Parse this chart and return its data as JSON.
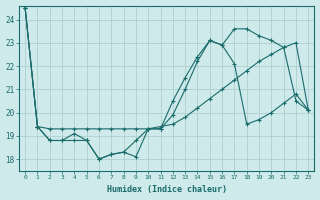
{
  "xlabel": "Humidex (Indice chaleur)",
  "bg_color": "#ceeaea",
  "line_color": "#1a6b6b",
  "grid_color": "#b8d8d8",
  "xlim": [
    -0.5,
    23.5
  ],
  "ylim": [
    17.5,
    24.6
  ],
  "yticks": [
    18,
    19,
    20,
    21,
    22,
    23,
    24
  ],
  "xticks": [
    0,
    1,
    2,
    3,
    4,
    5,
    6,
    7,
    8,
    9,
    10,
    11,
    12,
    13,
    14,
    15,
    16,
    17,
    18,
    19,
    20,
    21,
    22,
    23
  ],
  "line1_x": [
    0,
    1,
    2,
    3,
    4,
    5,
    6,
    7,
    8,
    9,
    10,
    11,
    12,
    13,
    14,
    15,
    16,
    17,
    18,
    19,
    20,
    21,
    22,
    23
  ],
  "line1_y": [
    24.5,
    19.4,
    19.3,
    19.3,
    19.3,
    19.3,
    19.3,
    19.3,
    19.3,
    19.3,
    19.3,
    19.4,
    19.5,
    19.8,
    20.2,
    20.6,
    21.0,
    21.4,
    21.8,
    22.2,
    22.5,
    22.8,
    23.0,
    20.1
  ],
  "line2_x": [
    0,
    1,
    2,
    3,
    4,
    5,
    6,
    7,
    8,
    9,
    10,
    11,
    12,
    13,
    14,
    15,
    16,
    17,
    18,
    19,
    20,
    21,
    22,
    23
  ],
  "line2_y": [
    24.5,
    19.4,
    18.8,
    18.8,
    18.8,
    18.8,
    18.0,
    18.2,
    18.3,
    18.8,
    19.3,
    19.3,
    19.9,
    21.0,
    22.2,
    23.1,
    22.9,
    23.6,
    23.6,
    23.3,
    23.1,
    22.8,
    20.5,
    20.1
  ],
  "line3_x": [
    0,
    1,
    2,
    3,
    4,
    5,
    6,
    7,
    8,
    9,
    10,
    11,
    12,
    13,
    14,
    15,
    16,
    17,
    18,
    19,
    20,
    21,
    22,
    23
  ],
  "line3_y": [
    24.5,
    19.4,
    18.8,
    18.8,
    19.1,
    18.8,
    18.0,
    18.2,
    18.3,
    18.1,
    19.3,
    19.3,
    20.5,
    21.5,
    22.4,
    23.1,
    22.9,
    22.1,
    19.5,
    19.7,
    20.0,
    20.4,
    20.8,
    20.1
  ]
}
